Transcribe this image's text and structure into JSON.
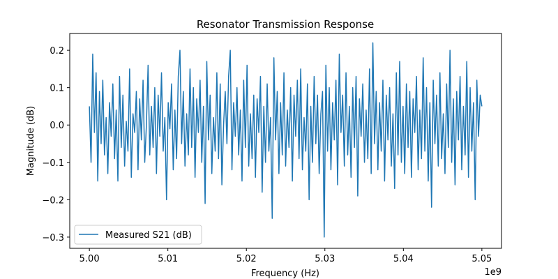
{
  "chart_data": {
    "type": "line",
    "title": "Resonator Transmission Response",
    "xlabel": "Frequency (Hz)",
    "ylabel": "Magnitude (dB)",
    "x_offset_text": "1e9",
    "xlim": [
      4.9975,
      5.0525
    ],
    "ylim": [
      -0.33,
      0.245
    ],
    "x_ticks": [
      5.0,
      5.01,
      5.02,
      5.03,
      5.04,
      5.05
    ],
    "x_tick_labels": [
      "5.00",
      "5.01",
      "5.02",
      "5.03",
      "5.04",
      "5.05"
    ],
    "y_ticks": [
      -0.3,
      -0.2,
      -0.1,
      0.0,
      0.1,
      0.2
    ],
    "y_tick_labels": [
      "−0.3",
      "−0.2",
      "−0.1",
      "0.0",
      "0.1",
      "0.2"
    ],
    "grid": false,
    "legend_position": "lower-left",
    "series": [
      {
        "name": "Measured S21 (dB)",
        "color": "#1f77b4",
        "x_start": 5.0,
        "x_end": 5.05,
        "values": [
          0.05,
          -0.1,
          0.19,
          -0.02,
          0.14,
          -0.15,
          0.09,
          -0.05,
          0.12,
          -0.08,
          0.02,
          -0.13,
          0.06,
          -0.03,
          0.11,
          -0.09,
          0.04,
          -0.15,
          0.13,
          -0.06,
          0.08,
          -0.11,
          0.01,
          -0.07,
          0.15,
          -0.14,
          0.03,
          -0.02,
          0.09,
          -0.12,
          0.07,
          -0.04,
          0.12,
          -0.1,
          0.0,
          0.16,
          -0.08,
          0.05,
          -0.06,
          0.1,
          -0.13,
          0.08,
          -0.03,
          0.14,
          -0.07,
          0.02,
          -0.2,
          0.06,
          -0.01,
          0.11,
          -0.12,
          0.04,
          -0.09,
          0.13,
          0.2,
          -0.05,
          0.09,
          -0.11,
          0.03,
          -0.08,
          0.15,
          -0.06,
          0.1,
          -0.14,
          0.07,
          -0.02,
          0.12,
          -0.1,
          0.05,
          -0.21,
          0.17,
          -0.04,
          0.08,
          -0.13,
          0.02,
          -0.07,
          0.14,
          -0.09,
          0.11,
          -0.16,
          0.0,
          0.09,
          -0.05,
          0.13,
          0.2,
          -0.12,
          0.06,
          -0.03,
          0.1,
          -0.08,
          0.04,
          -0.15,
          0.12,
          -0.06,
          0.16,
          -0.11,
          0.03,
          -0.09,
          0.08,
          -0.14,
          0.07,
          -0.02,
          0.13,
          -0.18,
          0.05,
          -0.1,
          0.11,
          -0.07,
          0.02,
          -0.25,
          0.18,
          -0.04,
          0.09,
          -0.13,
          0.06,
          -0.08,
          0.14,
          -0.11,
          0.04,
          -0.06,
          0.1,
          -0.15,
          0.08,
          -0.03,
          0.12,
          -0.09,
          0.15,
          -0.12,
          0.02,
          -0.07,
          0.11,
          -0.2,
          0.05,
          -0.1,
          0.13,
          -0.05,
          0.08,
          -0.13,
          0.03,
          0.09,
          -0.3,
          0.16,
          -0.07,
          0.1,
          -0.12,
          0.06,
          -0.04,
          0.12,
          -0.16,
          0.19,
          -0.02,
          0.08,
          -0.11,
          0.14,
          -0.08,
          0.05,
          -0.14,
          0.1,
          -0.06,
          0.13,
          -0.19,
          0.07,
          -0.03,
          0.11,
          -0.1,
          0.04,
          -0.09,
          0.15,
          -0.13,
          0.22,
          -0.05,
          0.09,
          -0.12,
          0.06,
          -0.07,
          0.12,
          -0.15,
          0.08,
          -0.04,
          0.1,
          -0.11,
          0.03,
          -0.17,
          0.14,
          -0.08,
          0.17,
          -0.1,
          0.05,
          -0.13,
          0.11,
          -0.06,
          0.09,
          -0.14,
          0.07,
          -0.02,
          0.13,
          -0.12,
          0.04,
          -0.09,
          0.18,
          -0.07,
          0.1,
          -0.15,
          0.06,
          -0.22,
          0.12,
          -0.05,
          0.08,
          -0.11,
          0.14,
          -0.09,
          0.03,
          -0.13,
          0.11,
          -0.06,
          0.2,
          -0.1,
          0.07,
          -0.16,
          0.09,
          -0.04,
          0.13,
          -0.12,
          0.05,
          -0.08,
          0.17,
          -0.14,
          0.1,
          -0.07,
          0.06,
          -0.2,
          0.12,
          -0.03,
          0.08,
          0.05
        ]
      }
    ]
  }
}
